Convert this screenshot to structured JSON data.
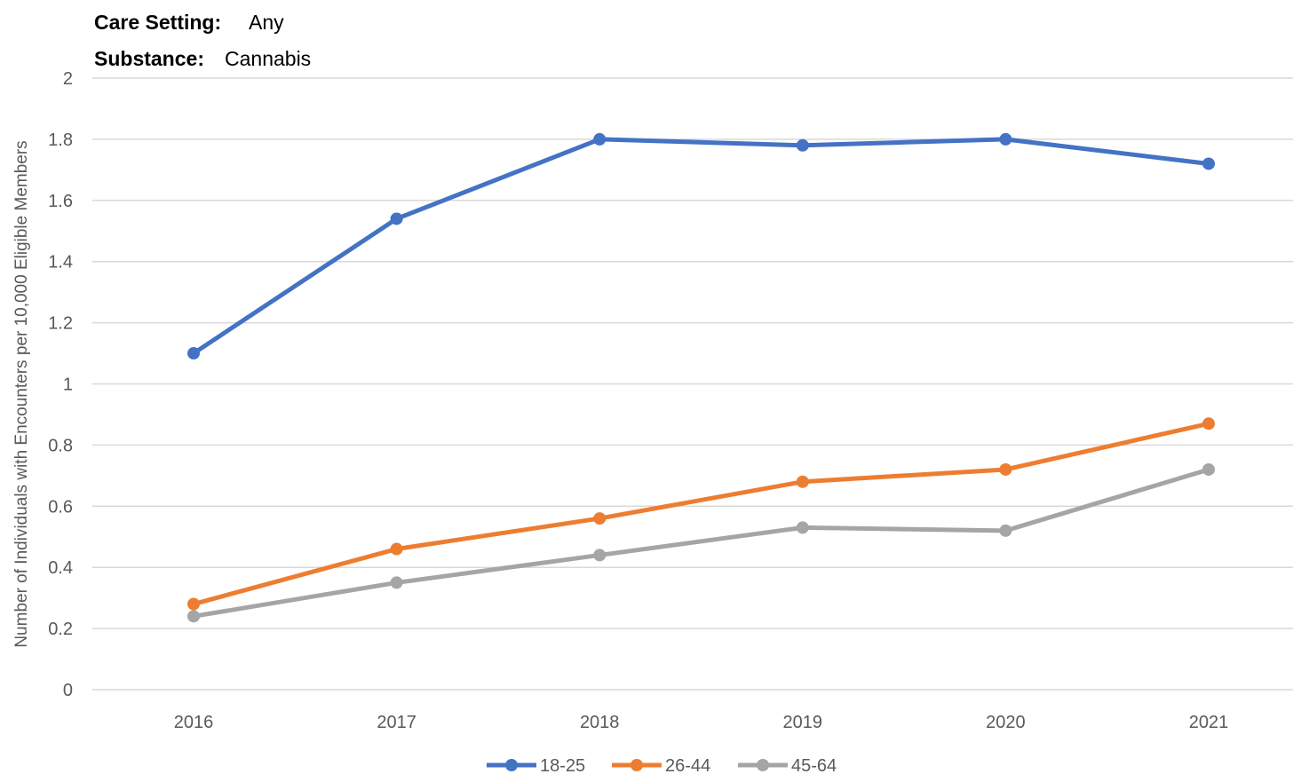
{
  "filters": [
    {
      "label": "Care Setting:",
      "value": "Any"
    },
    {
      "label": "Substance:",
      "value": "Cannabis"
    }
  ],
  "chart_data": {
    "type": "line",
    "title": "",
    "xlabel": "",
    "ylabel": "Number of Individuals with Encounters per 10,000 Eligible Members",
    "categories": [
      "2016",
      "2017",
      "2018",
      "2019",
      "2020",
      "2021"
    ],
    "ylim": [
      0,
      2
    ],
    "yticks": [
      "0",
      "0.2",
      "0.4",
      "0.6",
      "0.8",
      "1",
      "1.2",
      "1.4",
      "1.6",
      "1.8",
      "2"
    ],
    "grid": true,
    "legend_position": "bottom",
    "series": [
      {
        "name": "18-25",
        "color": "#4472c4",
        "values": [
          1.1,
          1.54,
          1.8,
          1.78,
          1.8,
          1.72
        ]
      },
      {
        "name": "26-44",
        "color": "#ed7d31",
        "values": [
          0.28,
          0.46,
          0.56,
          0.68,
          0.72,
          0.87
        ]
      },
      {
        "name": "45-64",
        "color": "#a5a5a5",
        "values": [
          0.24,
          0.35,
          0.44,
          0.53,
          0.52,
          0.72
        ]
      }
    ]
  }
}
